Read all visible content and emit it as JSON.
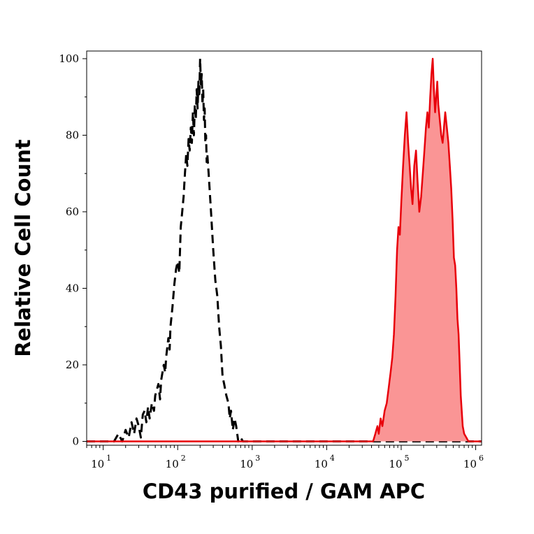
{
  "chart_data": {
    "type": "area",
    "title": "",
    "xlabel": "CD43 purified / GAM APC",
    "ylabel": "Relative Cell Count",
    "x_scale": "log",
    "xlim": [
      6,
      1200000
    ],
    "ylim": [
      -1,
      102
    ],
    "grid": false,
    "y_ticks": [
      0,
      20,
      40,
      60,
      80,
      100
    ],
    "y_tick_labels": [
      "0",
      "20",
      "40",
      "60",
      "80",
      "100"
    ],
    "x_ticks": [
      10,
      100,
      1000,
      10000,
      100000,
      1000000
    ],
    "x_tick_labels": [
      {
        "base": "10",
        "exp": "1"
      },
      {
        "base": "10",
        "exp": "2"
      },
      {
        "base": "10",
        "exp": "3"
      },
      {
        "base": "10",
        "exp": "4"
      },
      {
        "base": "10",
        "exp": "5"
      },
      {
        "base": "10",
        "exp": "6"
      }
    ],
    "series": [
      {
        "style": "dashed",
        "color": "#000000",
        "fill": "none",
        "points": [
          [
            6,
            0
          ],
          [
            14,
            0
          ],
          [
            16,
            2
          ],
          [
            18,
            0
          ],
          [
            20,
            3
          ],
          [
            22,
            1
          ],
          [
            24,
            5
          ],
          [
            26,
            2
          ],
          [
            28,
            6
          ],
          [
            30,
            4
          ],
          [
            32,
            1
          ],
          [
            34,
            7
          ],
          [
            36,
            8
          ],
          [
            38,
            5
          ],
          [
            40,
            9
          ],
          [
            42,
            6
          ],
          [
            45,
            10
          ],
          [
            48,
            8
          ],
          [
            50,
            12
          ],
          [
            55,
            15
          ],
          [
            58,
            11
          ],
          [
            60,
            16
          ],
          [
            65,
            20
          ],
          [
            68,
            18
          ],
          [
            70,
            22
          ],
          [
            75,
            27
          ],
          [
            78,
            24
          ],
          [
            80,
            30
          ],
          [
            85,
            35
          ],
          [
            90,
            41
          ],
          [
            95,
            45
          ],
          [
            100,
            47
          ],
          [
            105,
            44
          ],
          [
            110,
            56
          ],
          [
            115,
            60
          ],
          [
            120,
            64
          ],
          [
            125,
            70
          ],
          [
            130,
            75
          ],
          [
            135,
            72
          ],
          [
            140,
            79
          ],
          [
            145,
            76
          ],
          [
            150,
            82
          ],
          [
            155,
            78
          ],
          [
            160,
            86
          ],
          [
            165,
            80
          ],
          [
            170,
            88
          ],
          [
            175,
            84
          ],
          [
            180,
            92
          ],
          [
            185,
            87
          ],
          [
            190,
            94
          ],
          [
            195,
            90
          ],
          [
            200,
            100
          ],
          [
            205,
            93
          ],
          [
            210,
            96
          ],
          [
            215,
            88
          ],
          [
            220,
            92
          ],
          [
            225,
            84
          ],
          [
            230,
            87
          ],
          [
            235,
            78
          ],
          [
            240,
            80
          ],
          [
            245,
            73
          ],
          [
            250,
            75
          ],
          [
            260,
            70
          ],
          [
            270,
            65
          ],
          [
            280,
            60
          ],
          [
            290,
            55
          ],
          [
            300,
            50
          ],
          [
            320,
            42
          ],
          [
            340,
            38
          ],
          [
            360,
            30
          ],
          [
            380,
            25
          ],
          [
            400,
            17
          ],
          [
            420,
            15
          ],
          [
            450,
            12
          ],
          [
            480,
            10
          ],
          [
            500,
            6
          ],
          [
            520,
            8
          ],
          [
            550,
            3
          ],
          [
            580,
            6
          ],
          [
            610,
            4
          ],
          [
            650,
            0
          ],
          [
            700,
            1
          ],
          [
            750,
            0
          ],
          [
            1200000,
            0
          ]
        ]
      },
      {
        "style": "solid",
        "color": "#e8000b",
        "fill": "#fa9595",
        "points": [
          [
            6,
            0
          ],
          [
            42000,
            0
          ],
          [
            45000,
            2
          ],
          [
            48000,
            4
          ],
          [
            50000,
            2
          ],
          [
            53000,
            6
          ],
          [
            56000,
            4
          ],
          [
            60000,
            8
          ],
          [
            64000,
            10
          ],
          [
            68000,
            14
          ],
          [
            72000,
            18
          ],
          [
            76000,
            22
          ],
          [
            80000,
            28
          ],
          [
            84000,
            38
          ],
          [
            88000,
            50
          ],
          [
            92000,
            56
          ],
          [
            96000,
            54
          ],
          [
            100000,
            62
          ],
          [
            106000,
            72
          ],
          [
            112000,
            80
          ],
          [
            118000,
            86
          ],
          [
            124000,
            78
          ],
          [
            130000,
            72
          ],
          [
            136000,
            66
          ],
          [
            142000,
            62
          ],
          [
            150000,
            72
          ],
          [
            158000,
            76
          ],
          [
            166000,
            68
          ],
          [
            175000,
            60
          ],
          [
            185000,
            64
          ],
          [
            195000,
            70
          ],
          [
            205000,
            76
          ],
          [
            215000,
            82
          ],
          [
            225000,
            86
          ],
          [
            235000,
            82
          ],
          [
            245000,
            90
          ],
          [
            255000,
            96
          ],
          [
            265000,
            100
          ],
          [
            275000,
            92
          ],
          [
            285000,
            86
          ],
          [
            295000,
            90
          ],
          [
            305000,
            94
          ],
          [
            315000,
            88
          ],
          [
            330000,
            84
          ],
          [
            345000,
            80
          ],
          [
            360000,
            78
          ],
          [
            375000,
            82
          ],
          [
            390000,
            86
          ],
          [
            410000,
            82
          ],
          [
            430000,
            78
          ],
          [
            450000,
            72
          ],
          [
            470000,
            66
          ],
          [
            490000,
            58
          ],
          [
            510000,
            48
          ],
          [
            530000,
            46
          ],
          [
            550000,
            40
          ],
          [
            570000,
            32
          ],
          [
            590000,
            28
          ],
          [
            610000,
            20
          ],
          [
            630000,
            12
          ],
          [
            650000,
            8
          ],
          [
            670000,
            4
          ],
          [
            700000,
            2
          ],
          [
            750000,
            1
          ],
          [
            800000,
            0
          ],
          [
            1200000,
            0
          ]
        ]
      }
    ]
  }
}
